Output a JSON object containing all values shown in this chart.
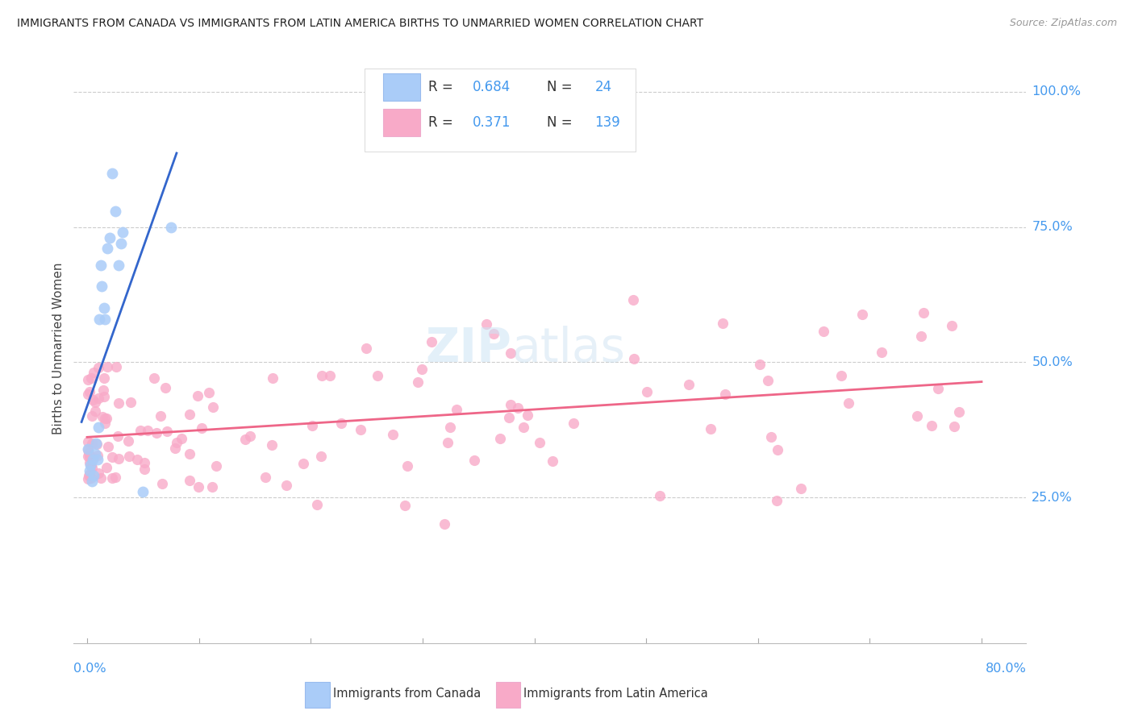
{
  "title": "IMMIGRANTS FROM CANADA VS IMMIGRANTS FROM LATIN AMERICA BIRTHS TO UNMARRIED WOMEN CORRELATION CHART",
  "source": "Source: ZipAtlas.com",
  "ylabel": "Births to Unmarried Women",
  "r_canada": 0.684,
  "n_canada": 24,
  "r_latin": 0.371,
  "n_latin": 139,
  "canada_color": "#aaccf8",
  "latin_color": "#f8aac8",
  "canada_line_color": "#3366cc",
  "latin_line_color": "#ee6688",
  "legend_label_canada": "Immigrants from Canada",
  "legend_label_latin": "Immigrants from Latin America",
  "watermark_text": "ZIPatlas",
  "bg_color": "#ffffff",
  "grid_color": "#cccccc",
  "right_label_color": "#4499ee",
  "title_color": "#222222",
  "source_color": "#999999"
}
